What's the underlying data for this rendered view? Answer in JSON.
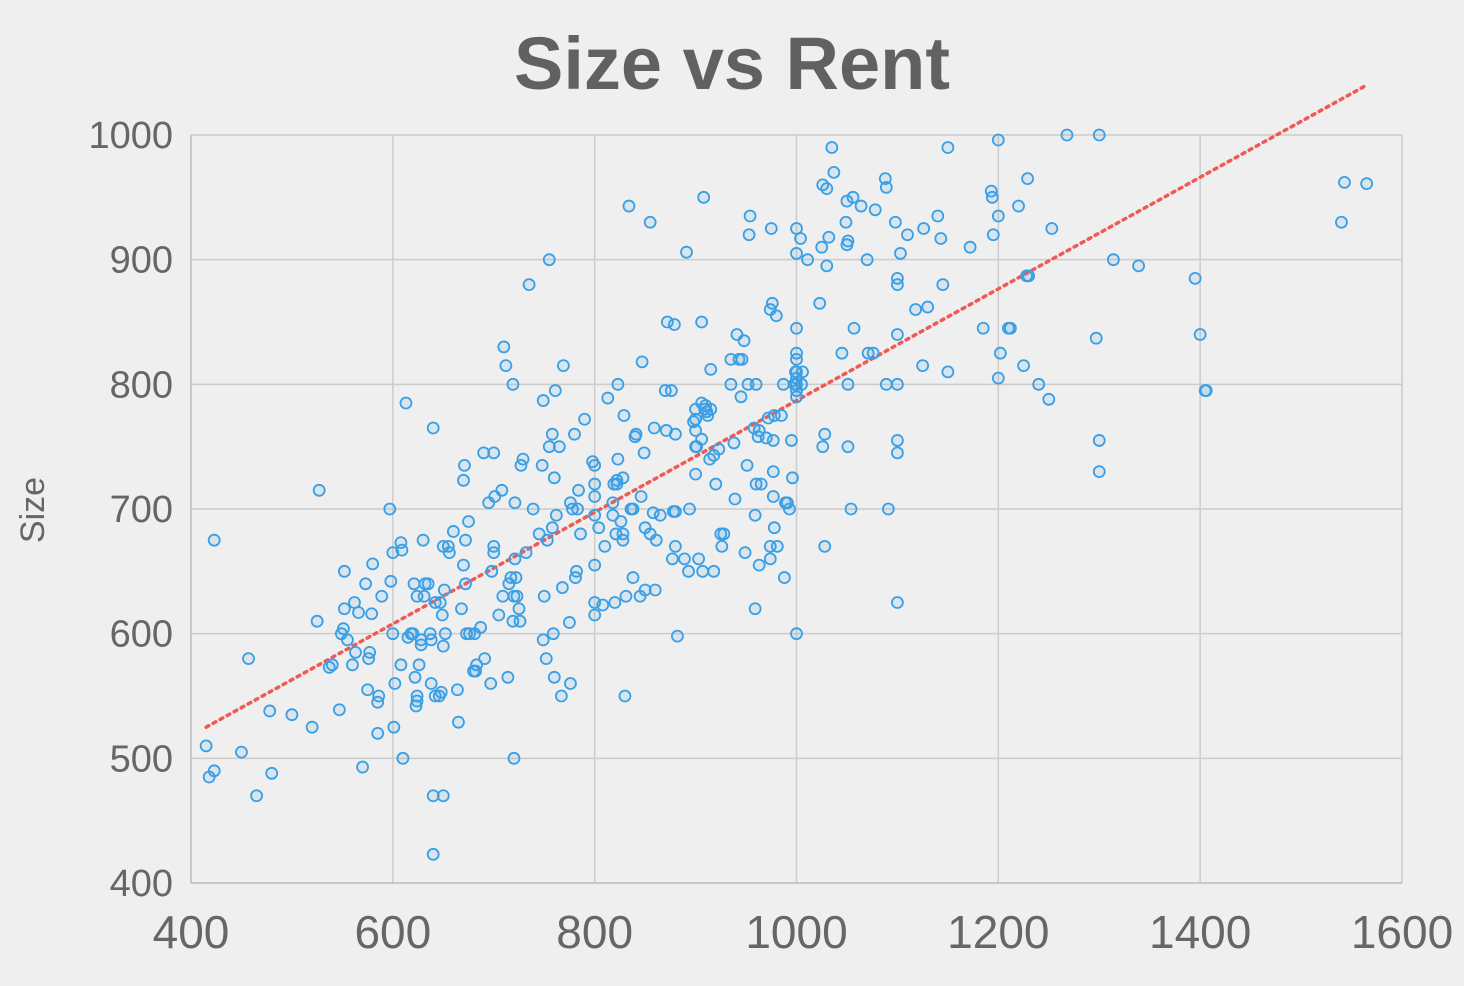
{
  "chart_data": {
    "type": "scatter",
    "title": "Size vs Rent",
    "xlabel": "",
    "ylabel": "Size",
    "xlim": [
      400,
      1600
    ],
    "ylim": [
      400,
      1000
    ],
    "x_ticks": [
      "400",
      "600",
      "800",
      "1000",
      "1200",
      "1400",
      "1600"
    ],
    "y_ticks": [
      "400",
      "500",
      "600",
      "700",
      "800",
      "900",
      "1000"
    ],
    "grid": true,
    "colors": {
      "points": "#3a9fe4",
      "trendline": "#ef5a55",
      "background": "#efefef",
      "text": "#616161"
    },
    "trendline": {
      "style": "dotted",
      "x": [
        415,
        1565
      ],
      "y": [
        525,
        1040
      ]
    },
    "points": [
      [
        415,
        510
      ],
      [
        418,
        485
      ],
      [
        423,
        490
      ],
      [
        423,
        675
      ],
      [
        450,
        505
      ],
      [
        457,
        580
      ],
      [
        465,
        470
      ],
      [
        478,
        538
      ],
      [
        480,
        488
      ],
      [
        500,
        535
      ],
      [
        520,
        525
      ],
      [
        527,
        715
      ],
      [
        525,
        610
      ],
      [
        537,
        573
      ],
      [
        540,
        575
      ],
      [
        547,
        539
      ],
      [
        549,
        600
      ],
      [
        551,
        604
      ],
      [
        552,
        620
      ],
      [
        552,
        650
      ],
      [
        555,
        595
      ],
      [
        562,
        625
      ],
      [
        563,
        585
      ],
      [
        560,
        575
      ],
      [
        566,
        617
      ],
      [
        570,
        493
      ],
      [
        573,
        640
      ],
      [
        575,
        555
      ],
      [
        577,
        585
      ],
      [
        576,
        580
      ],
      [
        579,
        616
      ],
      [
        580,
        656
      ],
      [
        585,
        520
      ],
      [
        585,
        545
      ],
      [
        586,
        550
      ],
      [
        589,
        630
      ],
      [
        597,
        700
      ],
      [
        598,
        642
      ],
      [
        600,
        665
      ],
      [
        600,
        600
      ],
      [
        601,
        525
      ],
      [
        602,
        560
      ],
      [
        608,
        575
      ],
      [
        608,
        673
      ],
      [
        609,
        667
      ],
      [
        610,
        500
      ],
      [
        613,
        785
      ],
      [
        615,
        597
      ],
      [
        618,
        600
      ],
      [
        620,
        600
      ],
      [
        621,
        640
      ],
      [
        622,
        565
      ],
      [
        623,
        542
      ],
      [
        624,
        546
      ],
      [
        624,
        550
      ],
      [
        624,
        630
      ],
      [
        626,
        575
      ],
      [
        628,
        595
      ],
      [
        628,
        591
      ],
      [
        630,
        675
      ],
      [
        631,
        630
      ],
      [
        632,
        640
      ],
      [
        635,
        640
      ],
      [
        637,
        600
      ],
      [
        638,
        560
      ],
      [
        638,
        595
      ],
      [
        640,
        765
      ],
      [
        640,
        470
      ],
      [
        640,
        423
      ],
      [
        642,
        550
      ],
      [
        642,
        625
      ],
      [
        646,
        550
      ],
      [
        647,
        625
      ],
      [
        648,
        553
      ],
      [
        649,
        615
      ],
      [
        650,
        470
      ],
      [
        650,
        590
      ],
      [
        650,
        670
      ],
      [
        651,
        635
      ],
      [
        652,
        600
      ],
      [
        655,
        670
      ],
      [
        656,
        665
      ],
      [
        660,
        682
      ],
      [
        664,
        555
      ],
      [
        665,
        529
      ],
      [
        668,
        620
      ],
      [
        670,
        655
      ],
      [
        670,
        723
      ],
      [
        671,
        735
      ],
      [
        672,
        675
      ],
      [
        672,
        640
      ],
      [
        673,
        600
      ],
      [
        675,
        690
      ],
      [
        676,
        600
      ],
      [
        680,
        570
      ],
      [
        681,
        600
      ],
      [
        682,
        570
      ],
      [
        683,
        575
      ],
      [
        687,
        605
      ],
      [
        690,
        745
      ],
      [
        691,
        580
      ],
      [
        695,
        705
      ],
      [
        697,
        560
      ],
      [
        698,
        650
      ],
      [
        700,
        665
      ],
      [
        700,
        670
      ],
      [
        700,
        745
      ],
      [
        701,
        710
      ],
      [
        705,
        615
      ],
      [
        708,
        715
      ],
      [
        709,
        630
      ],
      [
        710,
        830
      ],
      [
        712,
        815
      ],
      [
        714,
        565
      ],
      [
        715,
        640
      ],
      [
        717,
        645
      ],
      [
        719,
        800
      ],
      [
        719,
        610
      ],
      [
        720,
        500
      ],
      [
        720,
        630
      ],
      [
        721,
        660
      ],
      [
        721,
        705
      ],
      [
        722,
        645
      ],
      [
        723,
        630
      ],
      [
        725,
        620
      ],
      [
        726,
        610
      ],
      [
        727,
        735
      ],
      [
        729,
        740
      ],
      [
        732,
        665
      ],
      [
        735,
        880
      ],
      [
        739,
        700
      ],
      [
        745,
        680
      ],
      [
        748,
        735
      ],
      [
        749,
        787
      ],
      [
        749,
        595
      ],
      [
        750,
        630
      ],
      [
        752,
        580
      ],
      [
        753,
        675
      ],
      [
        755,
        900
      ],
      [
        755,
        750
      ],
      [
        758,
        685
      ],
      [
        758,
        760
      ],
      [
        759,
        600
      ],
      [
        760,
        565
      ],
      [
        760,
        725
      ],
      [
        761,
        795
      ],
      [
        762,
        695
      ],
      [
        765,
        750
      ],
      [
        767,
        550
      ],
      [
        768,
        637
      ],
      [
        769,
        815
      ],
      [
        775,
        609
      ],
      [
        776,
        705
      ],
      [
        776,
        560
      ],
      [
        778,
        700
      ],
      [
        780,
        760
      ],
      [
        781,
        645
      ],
      [
        782,
        650
      ],
      [
        783,
        700
      ],
      [
        784,
        715
      ],
      [
        786,
        680
      ],
      [
        790,
        772
      ],
      [
        798,
        738
      ],
      [
        800,
        735
      ],
      [
        800,
        710
      ],
      [
        800,
        720
      ],
      [
        800,
        695
      ],
      [
        800,
        655
      ],
      [
        800,
        615
      ],
      [
        800,
        625
      ],
      [
        804,
        685
      ],
      [
        808,
        623
      ],
      [
        810,
        670
      ],
      [
        813,
        789
      ],
      [
        818,
        705
      ],
      [
        818,
        695
      ],
      [
        819,
        720
      ],
      [
        820,
        625
      ],
      [
        821,
        680
      ],
      [
        822,
        720
      ],
      [
        822,
        723
      ],
      [
        823,
        740
      ],
      [
        823,
        800
      ],
      [
        826,
        690
      ],
      [
        828,
        680
      ],
      [
        828,
        675
      ],
      [
        828,
        725
      ],
      [
        829,
        775
      ],
      [
        830,
        550
      ],
      [
        831,
        630
      ],
      [
        834,
        943
      ],
      [
        836,
        700
      ],
      [
        838,
        700
      ],
      [
        838,
        645
      ],
      [
        840,
        758
      ],
      [
        841,
        760
      ],
      [
        845,
        630
      ],
      [
        846,
        710
      ],
      [
        847,
        818
      ],
      [
        849,
        745
      ],
      [
        850,
        635
      ],
      [
        850,
        685
      ],
      [
        855,
        680
      ],
      [
        855,
        930
      ],
      [
        858,
        697
      ],
      [
        859,
        765
      ],
      [
        860,
        635
      ],
      [
        861,
        675
      ],
      [
        865,
        695
      ],
      [
        870,
        795
      ],
      [
        871,
        763
      ],
      [
        872,
        850
      ],
      [
        876,
        795
      ],
      [
        877,
        660
      ],
      [
        878,
        698
      ],
      [
        879,
        848
      ],
      [
        880,
        698
      ],
      [
        880,
        670
      ],
      [
        880,
        760
      ],
      [
        882,
        598
      ],
      [
        889,
        660
      ],
      [
        891,
        906
      ],
      [
        893,
        650
      ],
      [
        894,
        700
      ],
      [
        898,
        770
      ],
      [
        900,
        780
      ],
      [
        900,
        772
      ],
      [
        900,
        763
      ],
      [
        900,
        750
      ],
      [
        900,
        728
      ],
      [
        901,
        750
      ],
      [
        903,
        660
      ],
      [
        906,
        850
      ],
      [
        906,
        756
      ],
      [
        906,
        785
      ],
      [
        907,
        650
      ],
      [
        908,
        950
      ],
      [
        909,
        780
      ],
      [
        910,
        783
      ],
      [
        911,
        778
      ],
      [
        912,
        775
      ],
      [
        914,
        740
      ],
      [
        915,
        812
      ],
      [
        915,
        780
      ],
      [
        918,
        650
      ],
      [
        918,
        743
      ],
      [
        920,
        720
      ],
      [
        923,
        748
      ],
      [
        925,
        680
      ],
      [
        926,
        670
      ],
      [
        928,
        680
      ],
      [
        935,
        820
      ],
      [
        935,
        800
      ],
      [
        938,
        753
      ],
      [
        939,
        708
      ],
      [
        941,
        840
      ],
      [
        943,
        820
      ],
      [
        945,
        790
      ],
      [
        946,
        820
      ],
      [
        948,
        835
      ],
      [
        949,
        665
      ],
      [
        951,
        735
      ],
      [
        952,
        800
      ],
      [
        953,
        920
      ],
      [
        954,
        935
      ],
      [
        958,
        765
      ],
      [
        959,
        620
      ],
      [
        959,
        695
      ],
      [
        960,
        800
      ],
      [
        960,
        720
      ],
      [
        962,
        758
      ],
      [
        963,
        763
      ],
      [
        963,
        655
      ],
      [
        965,
        720
      ],
      [
        970,
        757
      ],
      [
        972,
        773
      ],
      [
        974,
        670
      ],
      [
        974,
        660
      ],
      [
        974,
        860
      ],
      [
        975,
        925
      ],
      [
        976,
        865
      ],
      [
        977,
        710
      ],
      [
        977,
        730
      ],
      [
        977,
        755
      ],
      [
        978,
        775
      ],
      [
        978,
        685
      ],
      [
        980,
        855
      ],
      [
        981,
        670
      ],
      [
        985,
        775
      ],
      [
        987,
        800
      ],
      [
        988,
        645
      ],
      [
        989,
        705
      ],
      [
        991,
        705
      ],
      [
        993,
        700
      ],
      [
        995,
        755
      ],
      [
        996,
        725
      ],
      [
        998,
        800
      ],
      [
        999,
        810
      ],
      [
        1000,
        925
      ],
      [
        1000,
        905
      ],
      [
        1000,
        825
      ],
      [
        1000,
        820
      ],
      [
        1000,
        810
      ],
      [
        1000,
        805
      ],
      [
        1000,
        800
      ],
      [
        1000,
        795
      ],
      [
        1000,
        790
      ],
      [
        1000,
        845
      ],
      [
        1000,
        600
      ],
      [
        1004,
        917
      ],
      [
        1005,
        800
      ],
      [
        1006,
        810
      ],
      [
        1011,
        900
      ],
      [
        1023,
        865
      ],
      [
        1025,
        910
      ],
      [
        1026,
        750
      ],
      [
        1026,
        960
      ],
      [
        1028,
        670
      ],
      [
        1028,
        760
      ],
      [
        1030,
        957
      ],
      [
        1030,
        895
      ],
      [
        1032,
        918
      ],
      [
        1035,
        990
      ],
      [
        1037,
        970
      ],
      [
        1045,
        825
      ],
      [
        1049,
        930
      ],
      [
        1050,
        947
      ],
      [
        1050,
        912
      ],
      [
        1051,
        915
      ],
      [
        1051,
        800
      ],
      [
        1051,
        750
      ],
      [
        1054,
        700
      ],
      [
        1056,
        950
      ],
      [
        1057,
        845
      ],
      [
        1064,
        943
      ],
      [
        1070,
        900
      ],
      [
        1071,
        825
      ],
      [
        1076,
        825
      ],
      [
        1078,
        940
      ],
      [
        1088,
        965
      ],
      [
        1089,
        800
      ],
      [
        1089,
        958
      ],
      [
        1091,
        700
      ],
      [
        1098,
        930
      ],
      [
        1100,
        880
      ],
      [
        1100,
        885
      ],
      [
        1100,
        840
      ],
      [
        1100,
        800
      ],
      [
        1100,
        755
      ],
      [
        1100,
        745
      ],
      [
        1100,
        625
      ],
      [
        1103,
        905
      ],
      [
        1110,
        920
      ],
      [
        1118,
        860
      ],
      [
        1125,
        815
      ],
      [
        1126,
        925
      ],
      [
        1130,
        862
      ],
      [
        1140,
        935
      ],
      [
        1143,
        917
      ],
      [
        1145,
        880
      ],
      [
        1150,
        990
      ],
      [
        1150,
        810
      ],
      [
        1172,
        910
      ],
      [
        1185,
        845
      ],
      [
        1193,
        955
      ],
      [
        1194,
        950
      ],
      [
        1195,
        920
      ],
      [
        1200,
        996
      ],
      [
        1200,
        935
      ],
      [
        1200,
        805
      ],
      [
        1202,
        825
      ],
      [
        1210,
        845
      ],
      [
        1212,
        845
      ],
      [
        1220,
        943
      ],
      [
        1225,
        815
      ],
      [
        1228,
        887
      ],
      [
        1229,
        965
      ],
      [
        1230,
        887
      ],
      [
        1240,
        800
      ],
      [
        1250,
        788
      ],
      [
        1253,
        925
      ],
      [
        1268,
        1000
      ],
      [
        1297,
        837
      ],
      [
        1300,
        1000
      ],
      [
        1300,
        755
      ],
      [
        1300,
        730
      ],
      [
        1314,
        900
      ],
      [
        1339,
        895
      ],
      [
        1395,
        885
      ],
      [
        1400,
        840
      ],
      [
        1405,
        795
      ],
      [
        1406,
        795
      ],
      [
        1540,
        930
      ],
      [
        1543,
        962
      ],
      [
        1565,
        961
      ]
    ]
  }
}
